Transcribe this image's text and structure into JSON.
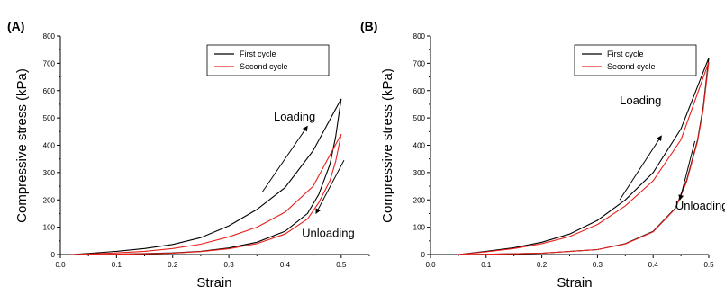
{
  "chart_data": [
    {
      "type": "line",
      "panel_label": "(A)",
      "xlabel": "Strain",
      "ylabel": "Compressive stress (kPa)",
      "xlim": [
        0.0,
        0.55
      ],
      "ylim": [
        0,
        800
      ],
      "xticks": [
        0.0,
        0.1,
        0.2,
        0.3,
        0.4,
        0.5
      ],
      "xtick_labels": [
        "0.0",
        "0.1",
        "0.2",
        "0.3",
        "0.4",
        "0.5"
      ],
      "yticks": [
        0,
        100,
        200,
        300,
        400,
        500,
        600,
        700,
        800
      ],
      "ytick_labels": [
        "0",
        "100",
        "200",
        "300",
        "400",
        "500",
        "600",
        "700",
        "800"
      ],
      "legend_position": "top-center",
      "series": [
        {
          "name": "First cycle",
          "color": "#000000",
          "loading": [
            [
              0.02,
              0
            ],
            [
              0.05,
              4
            ],
            [
              0.1,
              12
            ],
            [
              0.15,
              22
            ],
            [
              0.2,
              37
            ],
            [
              0.25,
              62
            ],
            [
              0.3,
              105
            ],
            [
              0.35,
              165
            ],
            [
              0.4,
              245
            ],
            [
              0.45,
              380
            ],
            [
              0.5,
              570
            ]
          ],
          "unloading": [
            [
              0.5,
              570
            ],
            [
              0.49,
              430
            ],
            [
              0.48,
              330
            ],
            [
              0.46,
              220
            ],
            [
              0.44,
              150
            ],
            [
              0.4,
              85
            ],
            [
              0.35,
              45
            ],
            [
              0.3,
              24
            ],
            [
              0.25,
              12
            ],
            [
              0.2,
              6
            ],
            [
              0.1,
              1
            ],
            [
              0.03,
              0
            ]
          ]
        },
        {
          "name": "Second cycle",
          "color": "#e8201a",
          "loading": [
            [
              0.02,
              0
            ],
            [
              0.05,
              2
            ],
            [
              0.1,
              6
            ],
            [
              0.15,
              12
            ],
            [
              0.2,
              22
            ],
            [
              0.25,
              38
            ],
            [
              0.3,
              65
            ],
            [
              0.35,
              100
            ],
            [
              0.4,
              155
            ],
            [
              0.45,
              250
            ],
            [
              0.5,
              440
            ]
          ],
          "unloading": [
            [
              0.5,
              440
            ],
            [
              0.49,
              340
            ],
            [
              0.48,
              270
            ],
            [
              0.46,
              190
            ],
            [
              0.44,
              130
            ],
            [
              0.4,
              75
            ],
            [
              0.35,
              40
            ],
            [
              0.3,
              21
            ],
            [
              0.25,
              11
            ],
            [
              0.2,
              5
            ],
            [
              0.1,
              1
            ],
            [
              0.03,
              0
            ]
          ]
        }
      ],
      "annotations": [
        {
          "text": "Loading",
          "x": 0.38,
          "y": 490
        },
        {
          "text": "Unloading",
          "x": 0.43,
          "y": 65
        }
      ],
      "arrows": [
        {
          "from": [
            0.36,
            230
          ],
          "to": [
            0.44,
            470
          ]
        },
        {
          "from": [
            0.505,
            345
          ],
          "to": [
            0.455,
            150
          ]
        }
      ]
    },
    {
      "type": "line",
      "panel_label": "(B)",
      "xlabel": "Strain",
      "ylabel": "Compressive stress (kPa)",
      "xlim": [
        0.0,
        0.5
      ],
      "ylim": [
        0,
        800
      ],
      "xticks": [
        0.0,
        0.1,
        0.2,
        0.3,
        0.4,
        0.5
      ],
      "xtick_labels": [
        "0.0",
        "0.1",
        "0.2",
        "0.3",
        "0.4",
        "0.5"
      ],
      "yticks": [
        0,
        100,
        200,
        300,
        400,
        500,
        600,
        700,
        800
      ],
      "ytick_labels": [
        "0",
        "100",
        "200",
        "300",
        "400",
        "500",
        "600",
        "700",
        "800"
      ],
      "legend_position": "top-center",
      "series": [
        {
          "name": "First cycle",
          "color": "#000000",
          "loading": [
            [
              0.05,
              0
            ],
            [
              0.1,
              12
            ],
            [
              0.15,
              25
            ],
            [
              0.2,
              45
            ],
            [
              0.25,
              75
            ],
            [
              0.3,
              125
            ],
            [
              0.35,
              200
            ],
            [
              0.4,
              300
            ],
            [
              0.45,
              460
            ],
            [
              0.5,
              720
            ]
          ],
          "unloading": [
            [
              0.5,
              720
            ],
            [
              0.49,
              540
            ],
            [
              0.48,
              420
            ],
            [
              0.46,
              270
            ],
            [
              0.44,
              170
            ],
            [
              0.4,
              85
            ],
            [
              0.35,
              40
            ],
            [
              0.3,
              18
            ],
            [
              0.2,
              5
            ],
            [
              0.1,
              1
            ],
            [
              0.05,
              0
            ]
          ]
        },
        {
          "name": "Second cycle",
          "color": "#e8201a",
          "loading": [
            [
              0.05,
              0
            ],
            [
              0.1,
              10
            ],
            [
              0.15,
              22
            ],
            [
              0.2,
              40
            ],
            [
              0.25,
              66
            ],
            [
              0.3,
              110
            ],
            [
              0.35,
              178
            ],
            [
              0.4,
              270
            ],
            [
              0.45,
              420
            ],
            [
              0.5,
              705
            ]
          ],
          "unloading": [
            [
              0.5,
              705
            ],
            [
              0.49,
              530
            ],
            [
              0.48,
              415
            ],
            [
              0.46,
              265
            ],
            [
              0.44,
              168
            ],
            [
              0.4,
              83
            ],
            [
              0.35,
              39
            ],
            [
              0.3,
              18
            ],
            [
              0.2,
              5
            ],
            [
              0.1,
              1
            ],
            [
              0.05,
              0
            ]
          ]
        }
      ],
      "annotations": [
        {
          "text": "Loading",
          "x": 0.34,
          "y": 550
        },
        {
          "text": "Unloading",
          "x": 0.44,
          "y": 165
        }
      ],
      "arrows": [
        {
          "from": [
            0.34,
            200
          ],
          "to": [
            0.415,
            435
          ]
        },
        {
          "from": [
            0.475,
            415
          ],
          "to": [
            0.448,
            200
          ]
        }
      ]
    }
  ]
}
